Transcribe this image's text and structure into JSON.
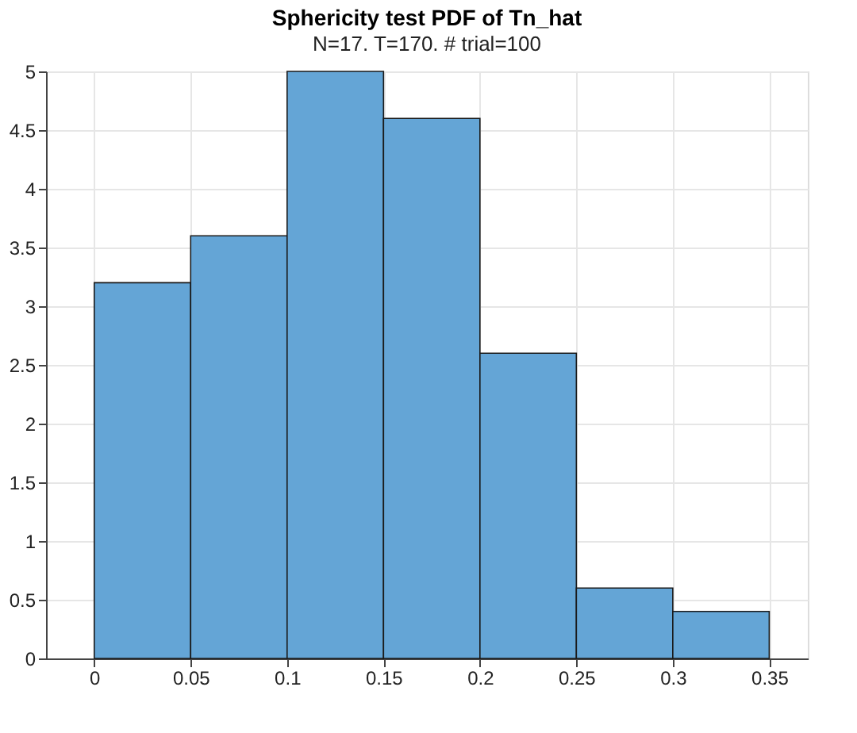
{
  "chart_data": {
    "type": "histogram",
    "title": "Sphericity test PDF of Tn_hat",
    "subtitle": "N=17. T=170. # trial=100",
    "bins": [
      0,
      0.05,
      0.1,
      0.15,
      0.2,
      0.25,
      0.3,
      0.35
    ],
    "values": [
      3.2,
      3.6,
      5,
      4.6,
      2.6,
      0.6,
      0.4
    ],
    "color": "#64a5d6",
    "xlim": [
      -0.025,
      0.37
    ],
    "xticks": [
      0,
      0.05,
      0.1,
      0.15,
      0.2,
      0.25,
      0.3,
      0.35
    ],
    "ylim": [
      0,
      5
    ],
    "yticks": [
      0,
      0.5,
      1,
      1.5,
      2,
      2.5,
      3,
      3.5,
      4,
      4.5,
      5
    ],
    "grid": true
  }
}
